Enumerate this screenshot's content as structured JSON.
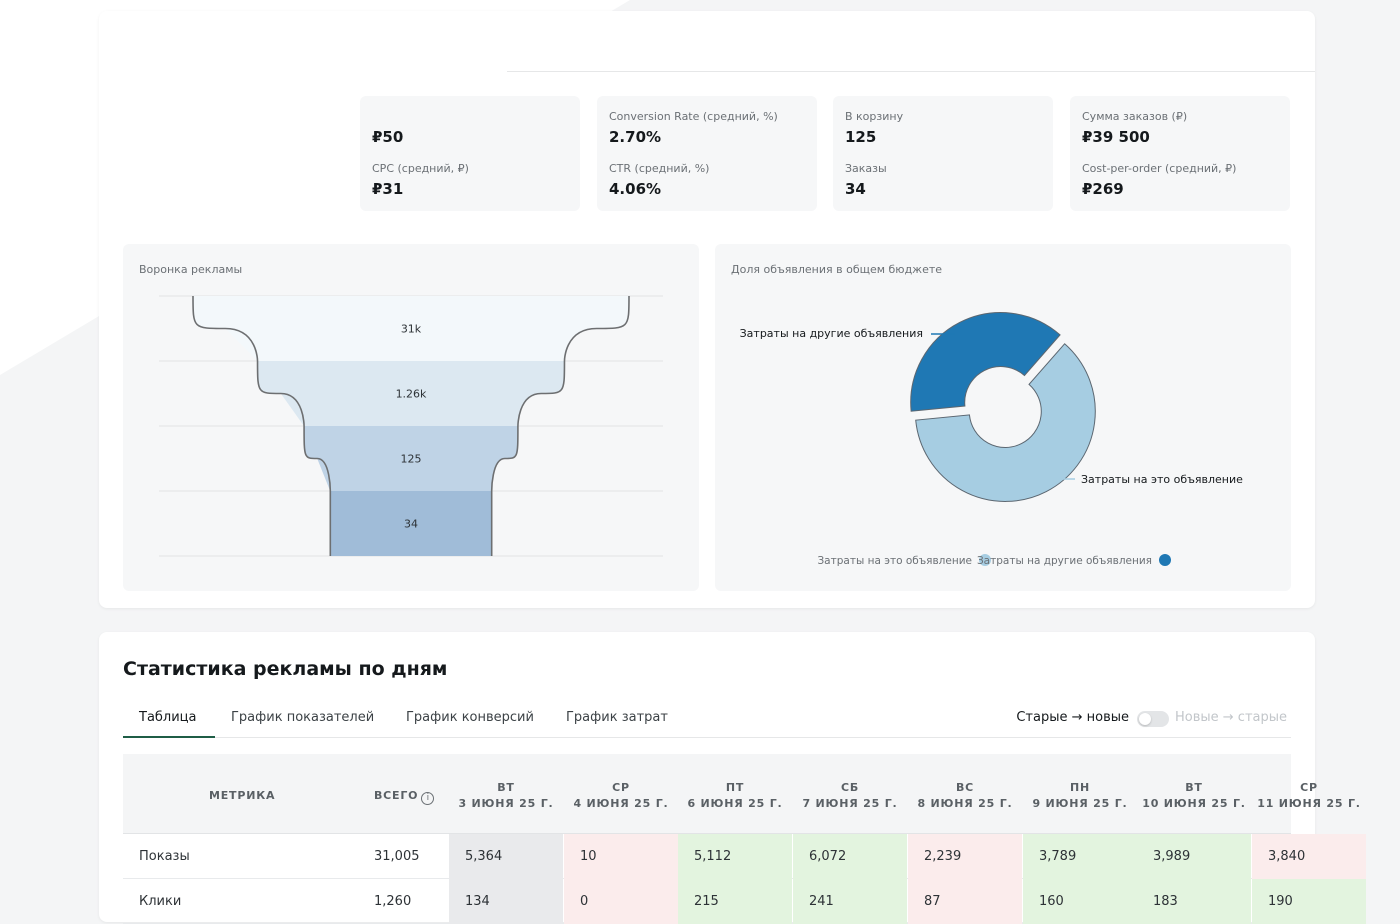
{
  "kpis": {
    "c1": {
      "l2": "CPC (средний, ₽)",
      "v1": "₽50",
      "v2": "₽31"
    },
    "c2": {
      "l1": "Conversion Rate (средний, %)",
      "v1": "2.70%",
      "l2": "CTR (средний, %)",
      "v2": "4.06%"
    },
    "c3": {
      "l1": "В корзину",
      "v1": "125",
      "l2": "Заказы",
      "v2": "34"
    },
    "c4": {
      "l1": "Сумма заказов (₽)",
      "v1": "₽39 500",
      "l2": "Cost-per-order (средний, ₽)",
      "v2": "₽269"
    }
  },
  "funnel_panel": {
    "title": "Воронка рекламы"
  },
  "donut_panel": {
    "title": "Доля объявления в общем бюджете"
  },
  "chart_data": [
    {
      "type": "funnel",
      "title": "Воронка рекламы",
      "stages": [
        {
          "value": 31005,
          "label": "31k",
          "color": "#f3f8fb"
        },
        {
          "value": 1260,
          "label": "1.26k",
          "color": "#dce8f1"
        },
        {
          "value": 125,
          "label": "125",
          "color": "#bfd3e6"
        },
        {
          "value": 34,
          "label": "34",
          "color": "#a0bcd8"
        }
      ]
    },
    {
      "type": "pie",
      "title": "Доля объявления в общем бюджете",
      "slices": [
        {
          "name": "Затраты на это объявление",
          "value": 62,
          "color": "#a6cde2"
        },
        {
          "name": "Затраты на другие объявления",
          "value": 38,
          "color": "#1f78b4"
        }
      ],
      "legend": "bottom"
    }
  ],
  "stats": {
    "title": "Статистика рекламы по дням",
    "tabs": [
      "Таблица",
      "График показателей",
      "График конверсий",
      "График затрат"
    ],
    "sort_on": "Старые → новые",
    "sort_off": "Новые → старые",
    "header": {
      "metric": "МЕТРИКА",
      "total": "ВСЕГО",
      "info_glyph": "i",
      "days": [
        {
          "dow": "ВТ",
          "date": "3 ИЮНЯ 25 Г."
        },
        {
          "dow": "СР",
          "date": "4 ИЮНЯ 25 Г."
        },
        {
          "dow": "ПТ",
          "date": "6 ИЮНЯ 25 Г."
        },
        {
          "dow": "СБ",
          "date": "7 ИЮНЯ 25 Г."
        },
        {
          "dow": "ВС",
          "date": "8 ИЮНЯ 25 Г."
        },
        {
          "dow": "ПН",
          "date": "9 ИЮНЯ 25 Г."
        },
        {
          "dow": "ВТ",
          "date": "10 ИЮНЯ 25 Г."
        },
        {
          "dow": "СР",
          "date": "11 ИЮНЯ 25 Г."
        }
      ]
    },
    "rows": [
      {
        "metric": "Показы",
        "total": "31,005",
        "cells": [
          "5,364",
          "10",
          "5,112",
          "6,072",
          "2,239",
          "3,789",
          "3,989",
          "3,840"
        ],
        "tones": [
          "neutral",
          "bad",
          "good",
          "good",
          "bad",
          "good",
          "good",
          "bad"
        ]
      },
      {
        "metric": "Клики",
        "total": "1,260",
        "cells": [
          "134",
          "0",
          "215",
          "241",
          "87",
          "160",
          "183",
          "190"
        ],
        "tones": [
          "neutral",
          "bad",
          "good",
          "good",
          "bad",
          "good",
          "good",
          "good"
        ]
      }
    ]
  },
  "colors": {
    "good": "#e3f4df",
    "bad": "#fbecec",
    "neutral": "#e9eaec",
    "accent": "#1f5d46"
  }
}
